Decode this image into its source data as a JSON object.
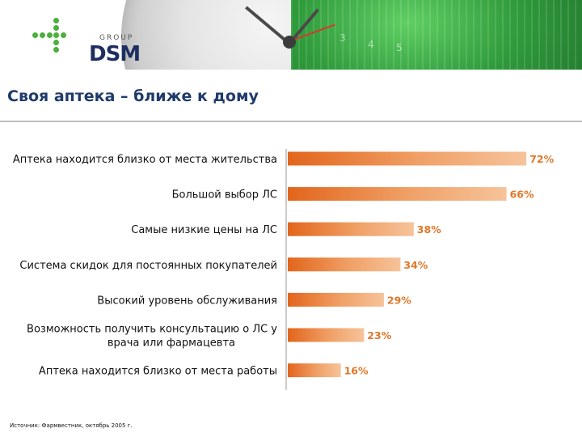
{
  "header": {
    "logo_group": "GROUP",
    "logo_dsm": "DSM",
    "brand_color": "#1c2f5f",
    "accent_green": "#4caf3d",
    "dial_numbers": [
      "3",
      "4",
      "5"
    ]
  },
  "title": "Своя аптека – ближе к дому",
  "source": "Источник: Фармвестник, октябрь 2005 г.",
  "chart_data": {
    "type": "bar",
    "orientation": "horizontal",
    "categories": [
      [
        "Аптека находится близко от места жительства"
      ],
      [
        "Большой выбор ЛС"
      ],
      [
        "Самые низкие цены на ЛС"
      ],
      [
        "Система скидок для постоянных покупателей"
      ],
      [
        "Высокий уровень обслуживания"
      ],
      [
        "Возможность получить консультацию о ЛС у",
        "врача или фармацевта"
      ],
      [
        "Аптека находится близко от места работы"
      ]
    ],
    "values": [
      72,
      66,
      38,
      34,
      29,
      23,
      16
    ],
    "value_labels": [
      "72%",
      "66%",
      "38%",
      "34%",
      "29%",
      "23%",
      "16%"
    ],
    "unit": "%",
    "xlim": [
      0,
      100
    ],
    "grid": false,
    "bar_color_start": "#e2651c",
    "bar_color_end": "#f6c39a",
    "label_color": "#e0782a"
  }
}
